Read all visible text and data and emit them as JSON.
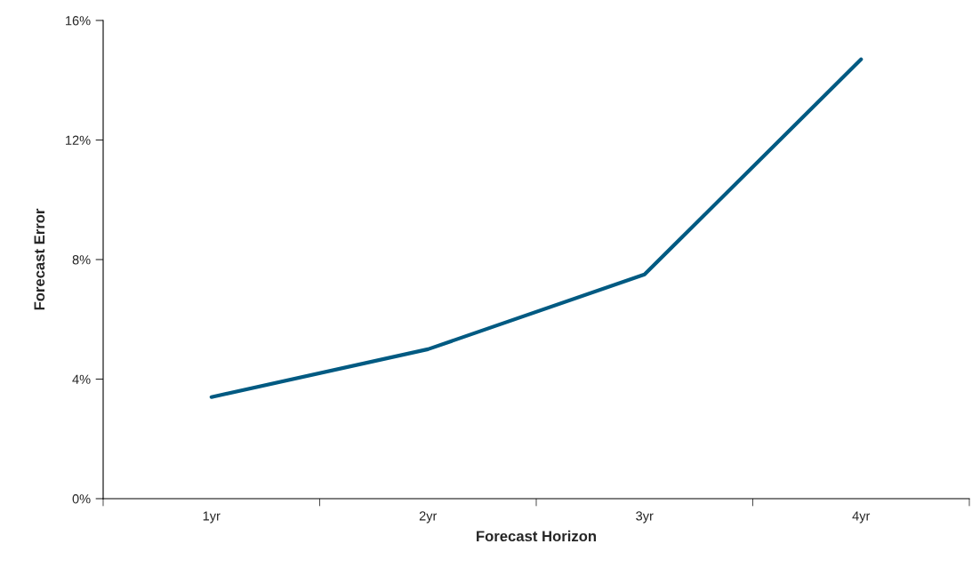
{
  "chart_data": {
    "type": "line",
    "xlabel": "Forecast Horizon",
    "ylabel": "Forecast Error",
    "categories": [
      "1yr",
      "2yr",
      "3yr",
      "4yr"
    ],
    "series": [
      {
        "color": "#005a82",
        "values": [
          3.4,
          5.0,
          7.5,
          14.7
        ]
      }
    ],
    "ylim": [
      0,
      16
    ],
    "yticks": [
      {
        "value": 0,
        "label": "0%"
      },
      {
        "value": 4,
        "label": "4%"
      },
      {
        "value": 8,
        "label": "8%"
      },
      {
        "value": 12,
        "label": "12%"
      },
      {
        "value": 16,
        "label": "16%"
      }
    ],
    "grid": false,
    "legend": false,
    "marker": "none",
    "line_style": "solid"
  }
}
